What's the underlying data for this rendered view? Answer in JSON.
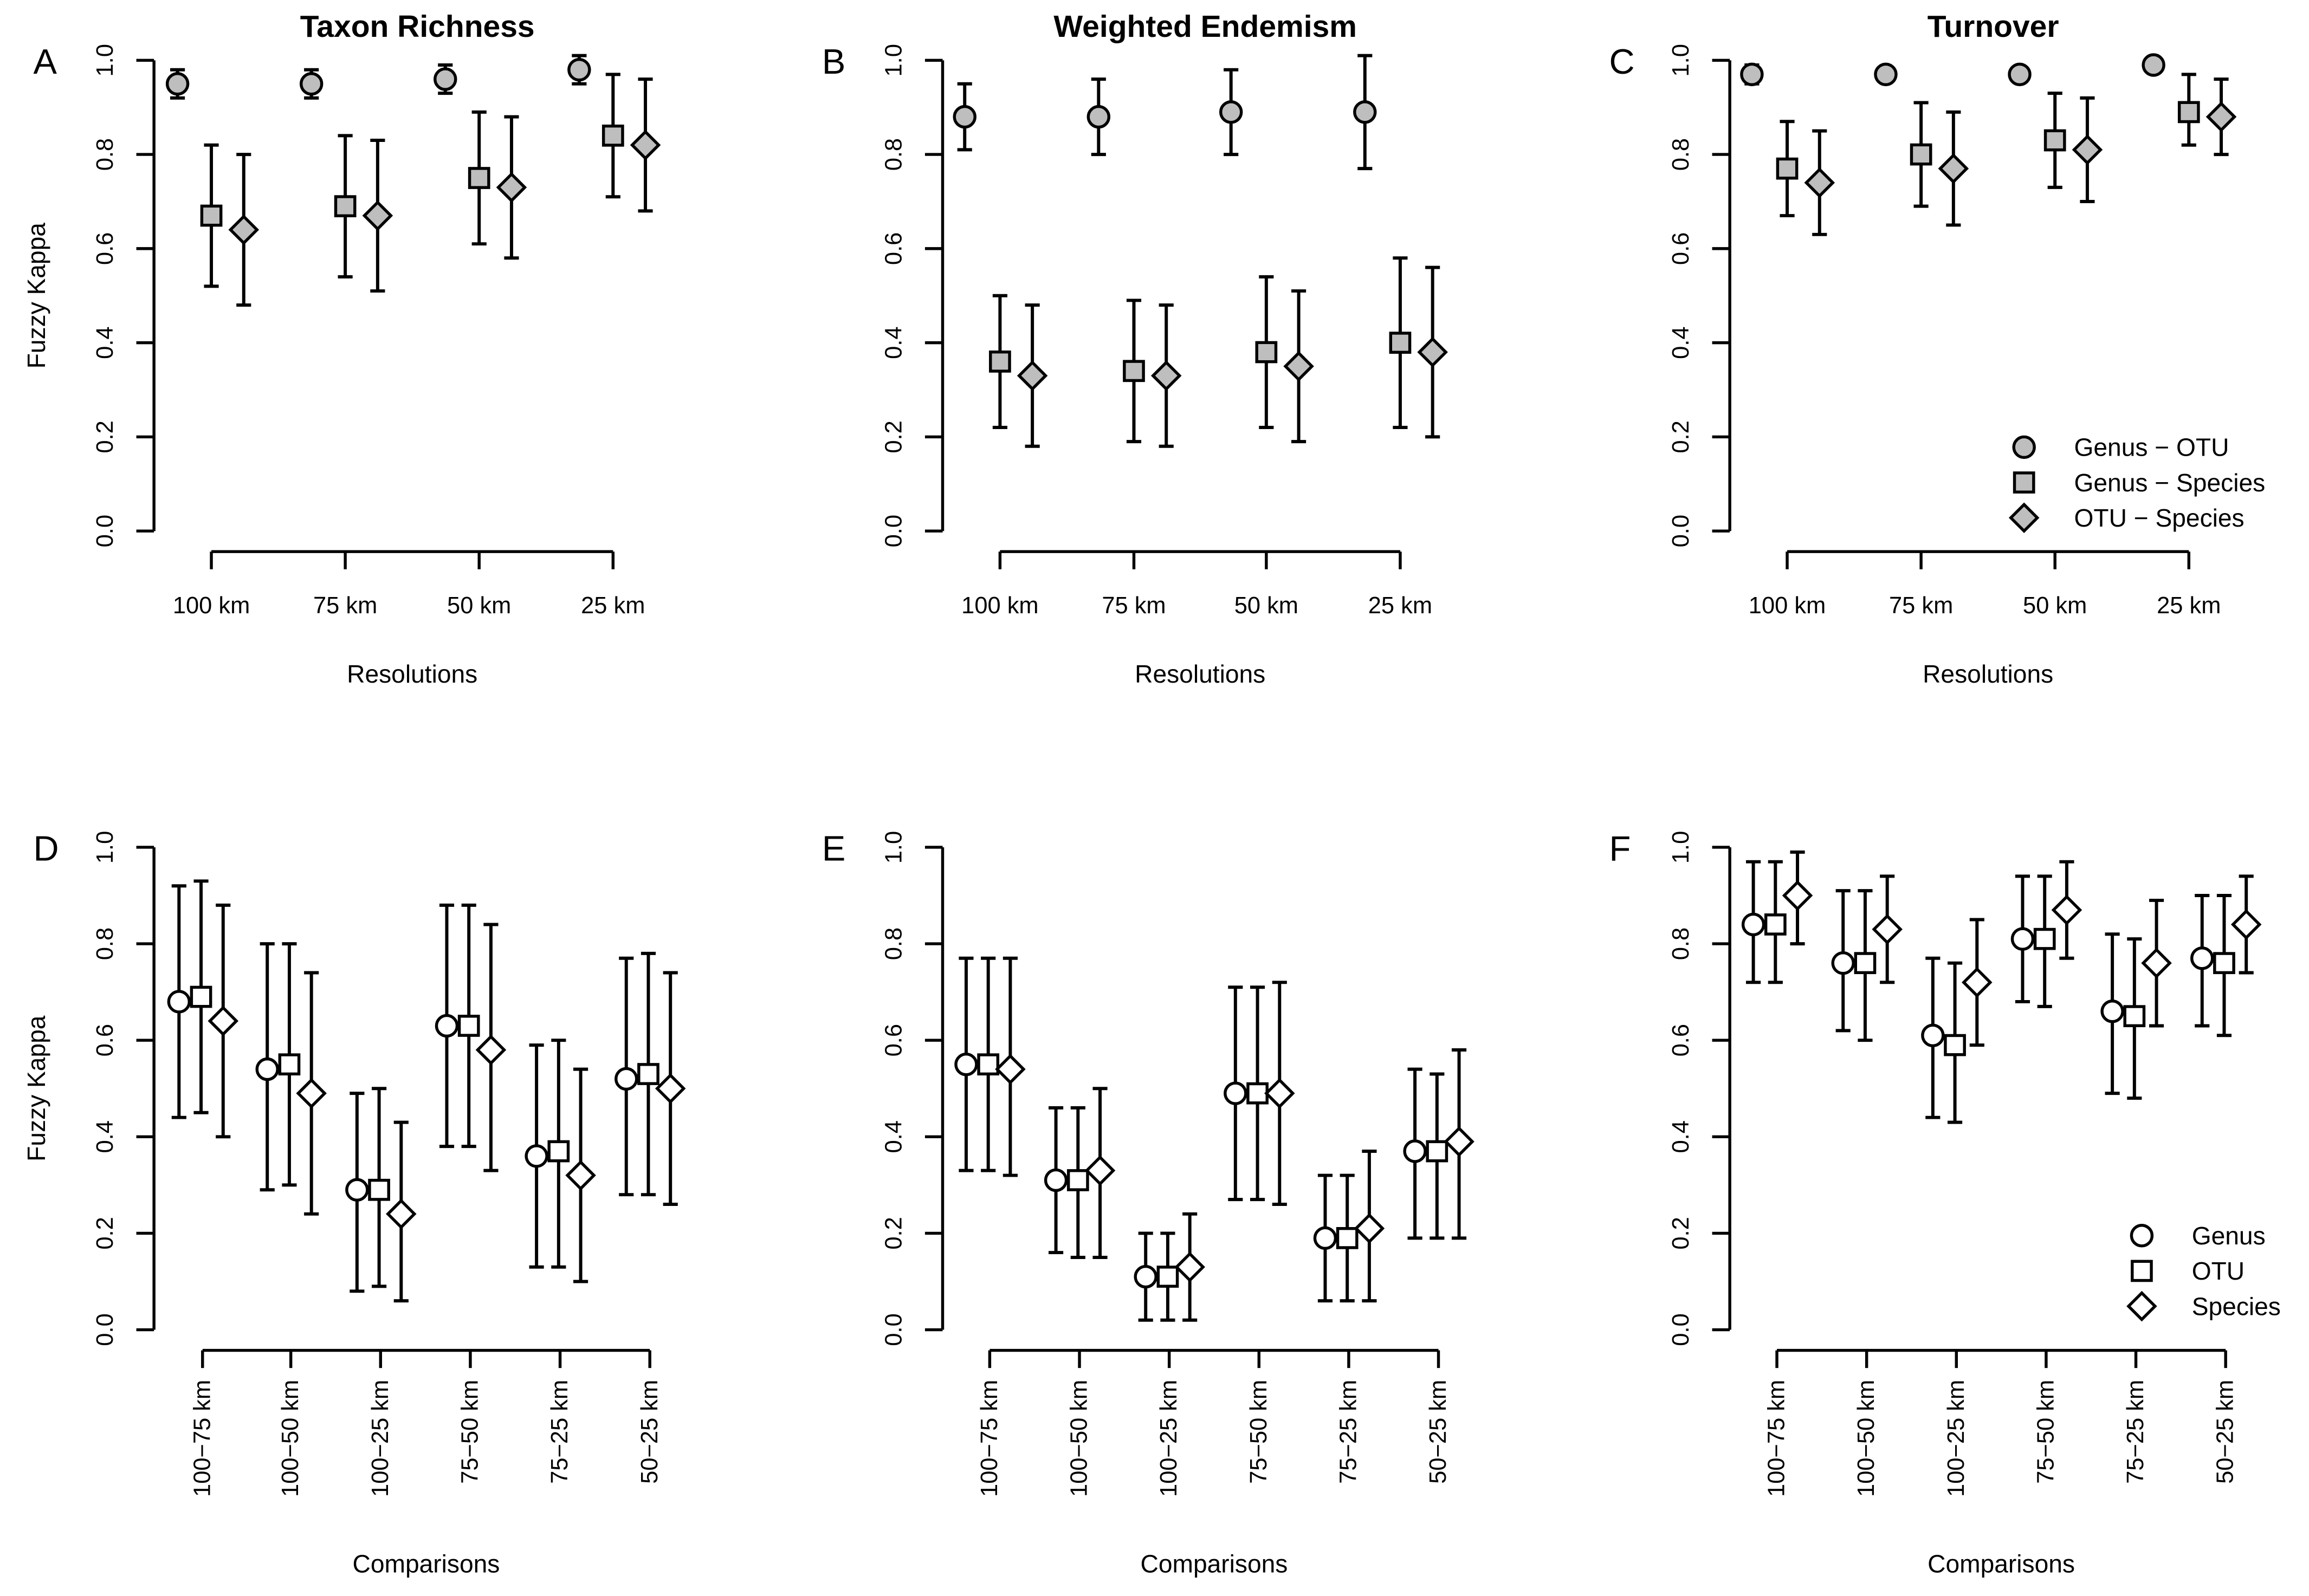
{
  "chart_data": [
    {
      "type": "scatter",
      "panel": "A",
      "title": "Taxon Richness",
      "xlabel": "Resolutions",
      "ylabel": "Fuzzy Kappa",
      "ylim": [
        0,
        1
      ],
      "yticks": [
        "0.0",
        "0.2",
        "0.4",
        "0.6",
        "0.8",
        "1.0"
      ],
      "categories": [
        "100 km",
        "75 km",
        "50 km",
        "25 km"
      ],
      "series": [
        {
          "name": "Genus − OTU",
          "marker": "circle",
          "fill": "#bebebe",
          "values": [
            0.95,
            0.95,
            0.96,
            0.98
          ],
          "lower": [
            0.92,
            0.92,
            0.93,
            0.95
          ],
          "upper": [
            0.98,
            0.98,
            0.99,
            1.01
          ]
        },
        {
          "name": "Genus − Species",
          "marker": "square",
          "fill": "#bebebe",
          "values": [
            0.67,
            0.69,
            0.75,
            0.84
          ],
          "lower": [
            0.52,
            0.54,
            0.61,
            0.71
          ],
          "upper": [
            0.82,
            0.84,
            0.89,
            0.97
          ]
        },
        {
          "name": "OTU − Species",
          "marker": "diamond",
          "fill": "#bebebe",
          "values": [
            0.64,
            0.67,
            0.73,
            0.82
          ],
          "lower": [
            0.48,
            0.51,
            0.58,
            0.68
          ],
          "upper": [
            0.8,
            0.83,
            0.88,
            0.96
          ]
        }
      ]
    },
    {
      "type": "scatter",
      "panel": "B",
      "title": "Weighted Endemism",
      "xlabel": "Resolutions",
      "ylabel": "",
      "ylim": [
        0,
        1
      ],
      "yticks": [
        "0.0",
        "0.2",
        "0.4",
        "0.6",
        "0.8",
        "1.0"
      ],
      "categories": [
        "100 km",
        "75 km",
        "50 km",
        "25 km"
      ],
      "series": [
        {
          "name": "Genus − OTU",
          "marker": "circle",
          "fill": "#bebebe",
          "values": [
            0.88,
            0.88,
            0.89,
            0.89
          ],
          "lower": [
            0.81,
            0.8,
            0.8,
            0.77
          ],
          "upper": [
            0.95,
            0.96,
            0.98,
            1.01
          ]
        },
        {
          "name": "Genus − Species",
          "marker": "square",
          "fill": "#bebebe",
          "values": [
            0.36,
            0.34,
            0.38,
            0.4
          ],
          "lower": [
            0.22,
            0.19,
            0.22,
            0.22
          ],
          "upper": [
            0.5,
            0.49,
            0.54,
            0.58
          ]
        },
        {
          "name": "OTU − Species",
          "marker": "diamond",
          "fill": "#bebebe",
          "values": [
            0.33,
            0.33,
            0.35,
            0.38
          ],
          "lower": [
            0.18,
            0.18,
            0.19,
            0.2
          ],
          "upper": [
            0.48,
            0.48,
            0.51,
            0.56
          ]
        }
      ]
    },
    {
      "type": "scatter",
      "panel": "C",
      "title": "Turnover",
      "xlabel": "Resolutions",
      "ylabel": "",
      "ylim": [
        0,
        1
      ],
      "yticks": [
        "0.0",
        "0.2",
        "0.4",
        "0.6",
        "0.8",
        "1.0"
      ],
      "categories": [
        "100 km",
        "75 km",
        "50 km",
        "25 km"
      ],
      "legend": "bottom-right",
      "series": [
        {
          "name": "Genus − OTU",
          "marker": "circle",
          "fill": "#bebebe",
          "values": [
            0.97,
            0.97,
            0.97,
            0.99
          ],
          "lower": [
            0.95,
            0.96,
            0.96,
            0.98
          ],
          "upper": [
            0.99,
            0.98,
            0.98,
            1.0
          ]
        },
        {
          "name": "Genus − Species",
          "marker": "square",
          "fill": "#bebebe",
          "values": [
            0.77,
            0.8,
            0.83,
            0.89
          ],
          "lower": [
            0.67,
            0.69,
            0.73,
            0.82
          ],
          "upper": [
            0.87,
            0.91,
            0.93,
            0.97
          ]
        },
        {
          "name": "OTU − Species",
          "marker": "diamond",
          "fill": "#bebebe",
          "values": [
            0.74,
            0.77,
            0.81,
            0.88
          ],
          "lower": [
            0.63,
            0.65,
            0.7,
            0.8
          ],
          "upper": [
            0.85,
            0.89,
            0.92,
            0.96
          ]
        }
      ]
    },
    {
      "type": "scatter",
      "panel": "D",
      "title": "",
      "xlabel": "Comparisons",
      "ylabel": "Fuzzy Kappa",
      "ylim": [
        0,
        1
      ],
      "yticks": [
        "0.0",
        "0.2",
        "0.4",
        "0.6",
        "0.8",
        "1.0"
      ],
      "categories": [
        "100−75 km",
        "100−50 km",
        "100−25 km",
        "75−50 km",
        "75−25 km",
        "50−25 km"
      ],
      "series": [
        {
          "name": "Genus",
          "marker": "circle",
          "fill": "#ffffff",
          "values": [
            0.68,
            0.54,
            0.29,
            0.63,
            0.36,
            0.52
          ],
          "lower": [
            0.44,
            0.29,
            0.08,
            0.38,
            0.13,
            0.28
          ],
          "upper": [
            0.92,
            0.8,
            0.49,
            0.88,
            0.59,
            0.77
          ]
        },
        {
          "name": "OTU",
          "marker": "square",
          "fill": "#ffffff",
          "values": [
            0.69,
            0.55,
            0.29,
            0.63,
            0.37,
            0.53
          ],
          "lower": [
            0.45,
            0.3,
            0.09,
            0.38,
            0.13,
            0.28
          ],
          "upper": [
            0.93,
            0.8,
            0.5,
            0.88,
            0.6,
            0.78
          ]
        },
        {
          "name": "Species",
          "marker": "diamond",
          "fill": "#ffffff",
          "values": [
            0.64,
            0.49,
            0.24,
            0.58,
            0.32,
            0.5
          ],
          "lower": [
            0.4,
            0.24,
            0.06,
            0.33,
            0.1,
            0.26
          ],
          "upper": [
            0.88,
            0.74,
            0.43,
            0.84,
            0.54,
            0.74
          ]
        }
      ]
    },
    {
      "type": "scatter",
      "panel": "E",
      "title": "",
      "xlabel": "Comparisons",
      "ylabel": "",
      "ylim": [
        0,
        1
      ],
      "yticks": [
        "0.0",
        "0.2",
        "0.4",
        "0.6",
        "0.8",
        "1.0"
      ],
      "categories": [
        "100−75 km",
        "100−50 km",
        "100−25 km",
        "75−50 km",
        "75−25 km",
        "50−25 km"
      ],
      "series": [
        {
          "name": "Genus",
          "marker": "circle",
          "fill": "#ffffff",
          "values": [
            0.55,
            0.31,
            0.11,
            0.49,
            0.19,
            0.37
          ],
          "lower": [
            0.33,
            0.16,
            0.02,
            0.27,
            0.06,
            0.19
          ],
          "upper": [
            0.77,
            0.46,
            0.2,
            0.71,
            0.32,
            0.54
          ]
        },
        {
          "name": "OTU",
          "marker": "square",
          "fill": "#ffffff",
          "values": [
            0.55,
            0.31,
            0.11,
            0.49,
            0.19,
            0.37
          ],
          "lower": [
            0.33,
            0.15,
            0.02,
            0.27,
            0.06,
            0.19
          ],
          "upper": [
            0.77,
            0.46,
            0.2,
            0.71,
            0.32,
            0.53
          ]
        },
        {
          "name": "Species",
          "marker": "diamond",
          "fill": "#ffffff",
          "values": [
            0.54,
            0.33,
            0.13,
            0.49,
            0.21,
            0.39
          ],
          "lower": [
            0.32,
            0.15,
            0.02,
            0.26,
            0.06,
            0.19
          ],
          "upper": [
            0.77,
            0.5,
            0.24,
            0.72,
            0.37,
            0.58
          ]
        }
      ]
    },
    {
      "type": "scatter",
      "panel": "F",
      "title": "",
      "xlabel": "Comparisons",
      "ylabel": "",
      "ylim": [
        0,
        1
      ],
      "yticks": [
        "0.0",
        "0.2",
        "0.4",
        "0.6",
        "0.8",
        "1.0"
      ],
      "categories": [
        "100−75 km",
        "100−50 km",
        "100−25 km",
        "75−50 km",
        "75−25 km",
        "50−25 km"
      ],
      "legend": "bottom-right",
      "series": [
        {
          "name": "Genus",
          "marker": "circle",
          "fill": "#ffffff",
          "values": [
            0.84,
            0.76,
            0.61,
            0.81,
            0.66,
            0.77
          ],
          "lower": [
            0.72,
            0.62,
            0.44,
            0.68,
            0.49,
            0.63
          ],
          "upper": [
            0.97,
            0.91,
            0.77,
            0.94,
            0.82,
            0.9
          ]
        },
        {
          "name": "OTU",
          "marker": "square",
          "fill": "#ffffff",
          "values": [
            0.84,
            0.76,
            0.59,
            0.81,
            0.65,
            0.76
          ],
          "lower": [
            0.72,
            0.6,
            0.43,
            0.67,
            0.48,
            0.61
          ],
          "upper": [
            0.97,
            0.91,
            0.76,
            0.94,
            0.81,
            0.9
          ]
        },
        {
          "name": "Species",
          "marker": "diamond",
          "fill": "#ffffff",
          "values": [
            0.9,
            0.83,
            0.72,
            0.87,
            0.76,
            0.84
          ],
          "lower": [
            0.8,
            0.72,
            0.59,
            0.77,
            0.63,
            0.74
          ],
          "upper": [
            0.99,
            0.94,
            0.85,
            0.97,
            0.89,
            0.94
          ]
        }
      ]
    }
  ]
}
